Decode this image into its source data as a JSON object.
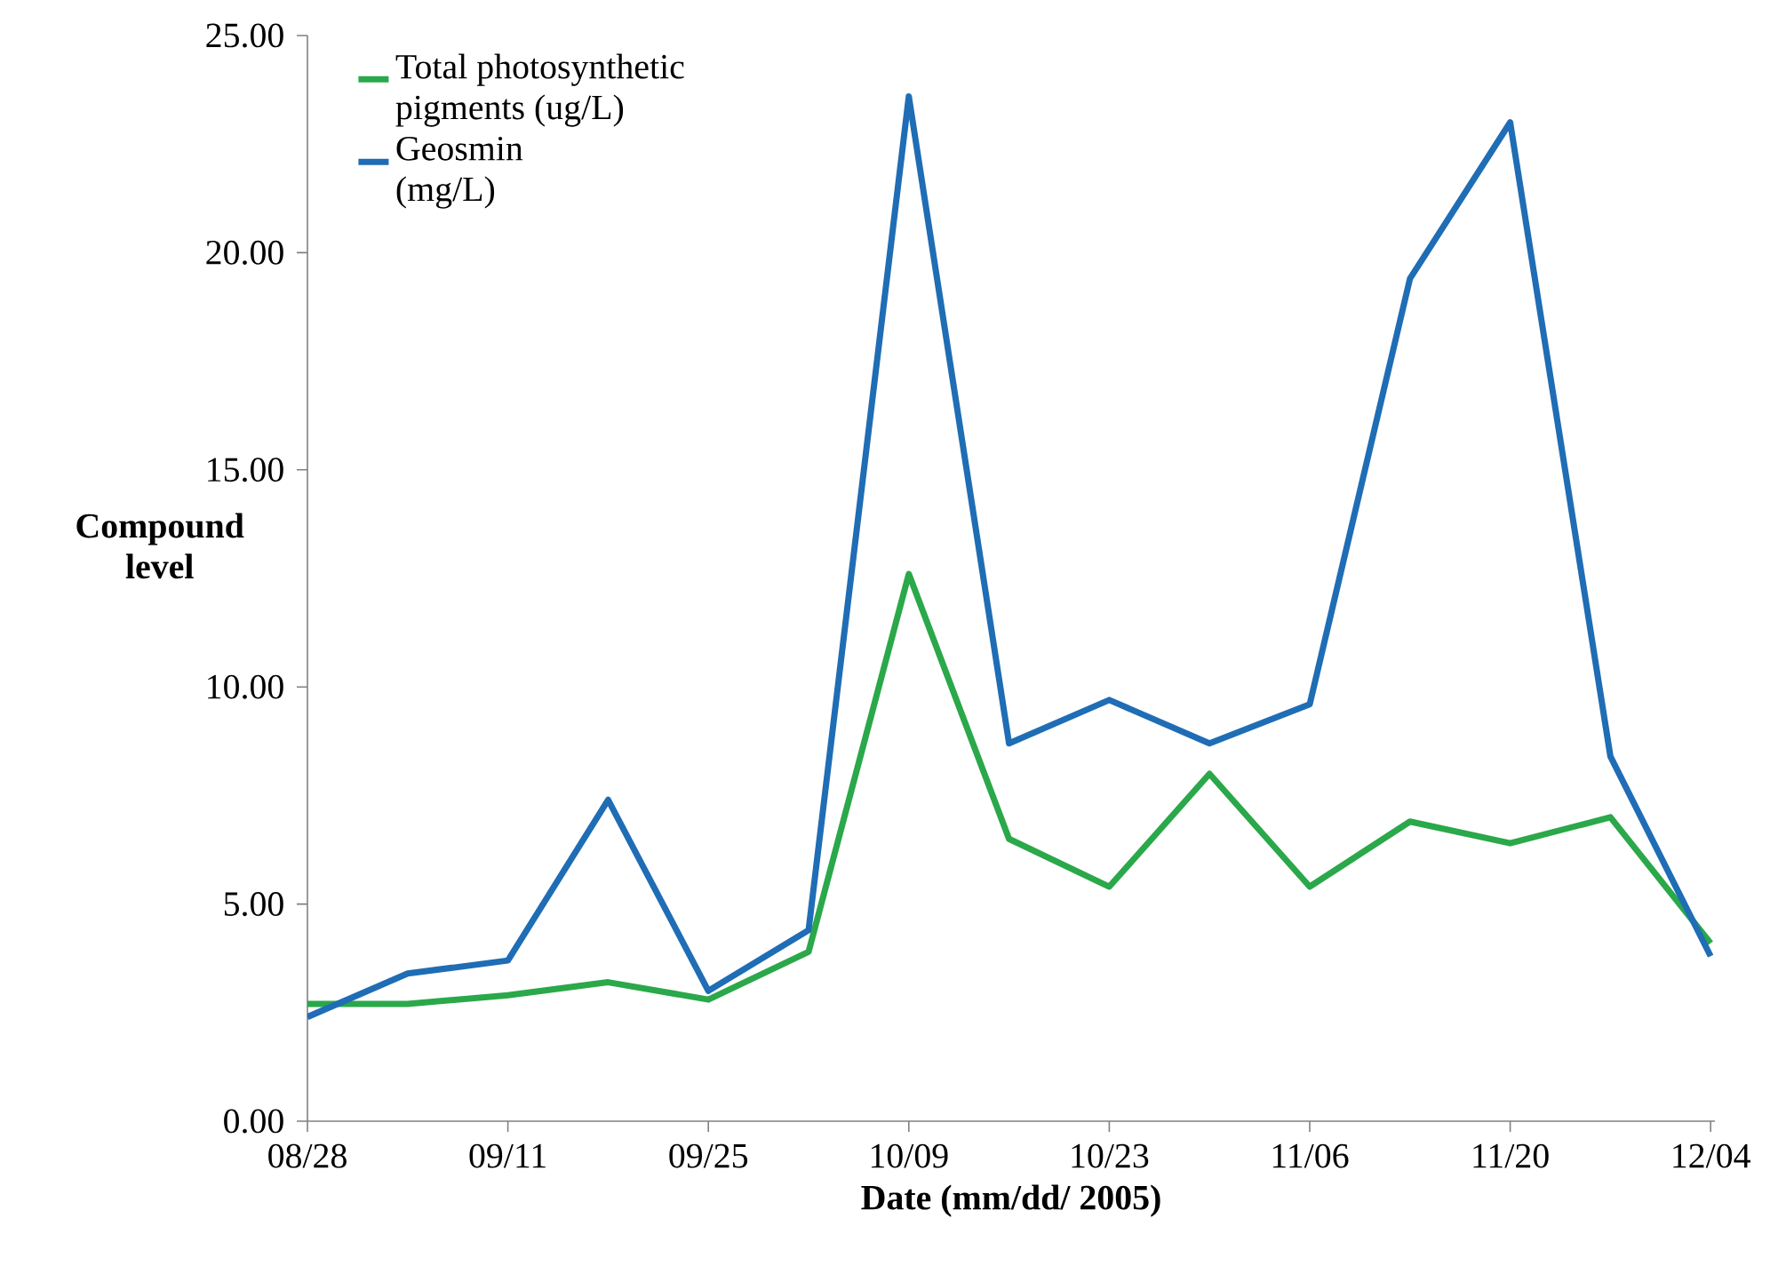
{
  "chart_data": {
    "type": "line",
    "xlabel": "Date (mm/dd/ 2005)",
    "ylabel": "Compound level",
    "x": [
      "2005-08-28",
      "2005-09-04",
      "2005-09-11",
      "2005-09-18",
      "2005-09-25",
      "2005-10-02",
      "2005-10-09",
      "2005-10-16",
      "2005-10-23",
      "2005-10-30",
      "2005-11-06",
      "2005-11-13",
      "2005-11-20",
      "2005-11-27",
      "2005-12-04"
    ],
    "series": [
      {
        "name": "Total photosynthetic pigments (ug/L)",
        "color": "#2aa84a",
        "values": [
          2.7,
          2.7,
          2.9,
          3.2,
          2.8,
          3.9,
          12.6,
          6.5,
          5.4,
          8.0,
          5.4,
          6.9,
          6.4,
          7.0,
          4.1
        ]
      },
      {
        "name": "Geosmin (mg/L)",
        "color": "#1f6db5",
        "values": [
          2.4,
          3.4,
          3.7,
          7.4,
          3.0,
          4.4,
          23.6,
          8.7,
          9.7,
          8.7,
          9.6,
          19.4,
          23.0,
          8.4,
          3.8
        ]
      }
    ],
    "xlim": [
      "2005-08-28",
      "2005-12-04"
    ],
    "xticks": [
      {
        "value": "2005-08-28",
        "label": "08/28"
      },
      {
        "value": "2005-09-11",
        "label": "09/11"
      },
      {
        "value": "2005-09-25",
        "label": "09/25"
      },
      {
        "value": "2005-10-09",
        "label": "10/09"
      },
      {
        "value": "2005-10-23",
        "label": "10/23"
      },
      {
        "value": "2005-11-06",
        "label": "11/06"
      },
      {
        "value": "2005-11-20",
        "label": "11/20"
      },
      {
        "value": "2005-12-04",
        "label": "12/04"
      }
    ],
    "ylim": [
      0,
      25
    ],
    "yticks": [
      {
        "value": 0,
        "label": "0.00"
      },
      {
        "value": 5,
        "label": "5.00"
      },
      {
        "value": 10,
        "label": "10.00"
      },
      {
        "value": 15,
        "label": "15.00"
      },
      {
        "value": 20,
        "label": "20.00"
      },
      {
        "value": 25,
        "label": "25.00"
      }
    ],
    "legend": "top left",
    "grid": false,
    "marker": "none",
    "line_style": "solid"
  }
}
